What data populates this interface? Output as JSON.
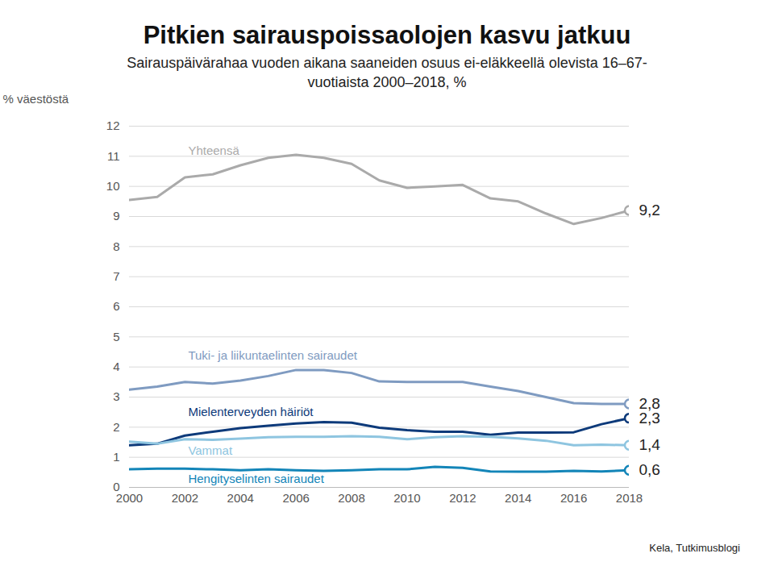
{
  "chart_data": {
    "type": "line",
    "title": "Pitkien sairauspoissaolojen kasvu jatkuu",
    "subtitle": "Sairauspäivärahaa vuoden aikana saaneiden osuus ei-eläkkeellä olevista 16–67-vuotiaista 2000–2018, %",
    "y_label": "% väestöstä",
    "caption": "Kela, Tutkimusblogi",
    "x": [
      2000,
      2001,
      2002,
      2003,
      2004,
      2005,
      2006,
      2007,
      2008,
      2009,
      2010,
      2011,
      2012,
      2013,
      2014,
      2015,
      2016,
      2017,
      2018
    ],
    "xlim": [
      2000,
      2018
    ],
    "xticks": [
      2000,
      2002,
      2004,
      2006,
      2008,
      2010,
      2012,
      2014,
      2016,
      2018
    ],
    "ylim": [
      0,
      12
    ],
    "yticks": [
      0,
      1,
      2,
      3,
      4,
      5,
      6,
      7,
      8,
      9,
      10,
      11,
      12
    ],
    "grid": true,
    "data_labels": true,
    "series": [
      {
        "name": "Yhteensä",
        "color": "#aaaaaa",
        "values": [
          9.55,
          9.65,
          10.3,
          10.4,
          10.7,
          10.95,
          11.05,
          10.95,
          10.75,
          10.2,
          9.95,
          10.0,
          10.05,
          9.6,
          9.5,
          9.1,
          8.75,
          8.95,
          9.2
        ],
        "value_labels": [
          null,
          null,
          null,
          null,
          null,
          null,
          null,
          null,
          null,
          null,
          null,
          null,
          null,
          null,
          null,
          null,
          null,
          null,
          "9,2"
        ]
      },
      {
        "name": "Tuki- ja liikuntaelinten sairaudet",
        "color": "#7f9bc1",
        "values": [
          3.25,
          3.35,
          3.5,
          3.45,
          3.55,
          3.7,
          3.9,
          3.9,
          3.8,
          3.52,
          3.5,
          3.5,
          3.5,
          3.35,
          3.2,
          3.0,
          2.8,
          2.77,
          2.77
        ],
        "value_labels": [
          null,
          null,
          null,
          null,
          null,
          null,
          null,
          null,
          null,
          null,
          null,
          null,
          null,
          null,
          null,
          null,
          null,
          null,
          "2,8"
        ]
      },
      {
        "name": "Mielenterveyden häiriöt",
        "color": "#0d3a7a",
        "values": [
          1.4,
          1.45,
          1.72,
          1.85,
          1.97,
          2.05,
          2.12,
          2.17,
          2.15,
          1.98,
          1.9,
          1.85,
          1.85,
          1.75,
          1.82,
          1.82,
          1.83,
          2.1,
          2.3
        ],
        "value_labels": [
          null,
          null,
          null,
          null,
          null,
          null,
          null,
          null,
          null,
          null,
          null,
          null,
          null,
          null,
          null,
          null,
          null,
          null,
          "2,3"
        ]
      },
      {
        "name": "Vammat",
        "color": "#8ec5e0",
        "values": [
          1.52,
          1.45,
          1.6,
          1.58,
          1.62,
          1.67,
          1.68,
          1.68,
          1.7,
          1.68,
          1.6,
          1.67,
          1.7,
          1.68,
          1.63,
          1.55,
          1.4,
          1.42,
          1.4
        ],
        "value_labels": [
          null,
          null,
          null,
          null,
          null,
          null,
          null,
          null,
          null,
          null,
          null,
          null,
          null,
          null,
          null,
          null,
          null,
          null,
          "1,4"
        ]
      },
      {
        "name": "Hengityselinten sairaudet",
        "color": "#1385b8",
        "values": [
          0.6,
          0.62,
          0.62,
          0.6,
          0.57,
          0.6,
          0.57,
          0.55,
          0.57,
          0.6,
          0.6,
          0.68,
          0.65,
          0.53,
          0.52,
          0.52,
          0.55,
          0.53,
          0.57
        ],
        "value_labels": [
          null,
          null,
          null,
          null,
          null,
          null,
          null,
          null,
          null,
          null,
          null,
          null,
          null,
          null,
          null,
          null,
          null,
          null,
          "0,6"
        ]
      }
    ]
  }
}
